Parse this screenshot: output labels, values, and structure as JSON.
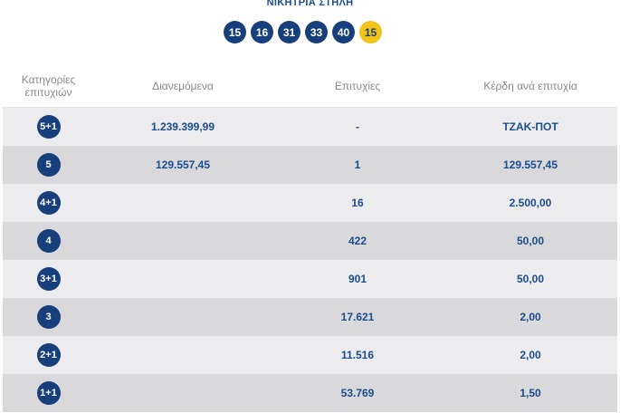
{
  "header": {
    "title": "ΝΙΚΗΤΡΙΑ ΣΤΗΛΗ",
    "numbers": [
      "15",
      "16",
      "31",
      "33",
      "40"
    ],
    "bonus": "15"
  },
  "table": {
    "columns": [
      "Κατηγορίες επιτυχιών",
      "Διανεμόμενα",
      "Επιτυχίες",
      "Κέρδη ανά επιτυχία"
    ],
    "rows": [
      {
        "category": "5+1",
        "distributed": "1.239.399,99",
        "winners": "-",
        "prize": "ΤΖΑΚ-ΠΟΤ"
      },
      {
        "category": "5",
        "distributed": "129.557,45",
        "winners": "1",
        "prize": "129.557,45"
      },
      {
        "category": "4+1",
        "distributed": "",
        "winners": "16",
        "prize": "2.500,00"
      },
      {
        "category": "4",
        "distributed": "",
        "winners": "422",
        "prize": "50,00"
      },
      {
        "category": "3+1",
        "distributed": "",
        "winners": "901",
        "prize": "50,00"
      },
      {
        "category": "3",
        "distributed": "",
        "winners": "17.621",
        "prize": "2,00"
      },
      {
        "category": "2+1",
        "distributed": "",
        "winners": "11.516",
        "prize": "2,00"
      },
      {
        "category": "1+1",
        "distributed": "",
        "winners": "53.769",
        "prize": "1,50"
      }
    ]
  },
  "colors": {
    "primary_blue": "#173f7c",
    "bonus_yellow": "#f2c318",
    "row_light": "#ececee",
    "row_dark": "#d9d9db"
  }
}
